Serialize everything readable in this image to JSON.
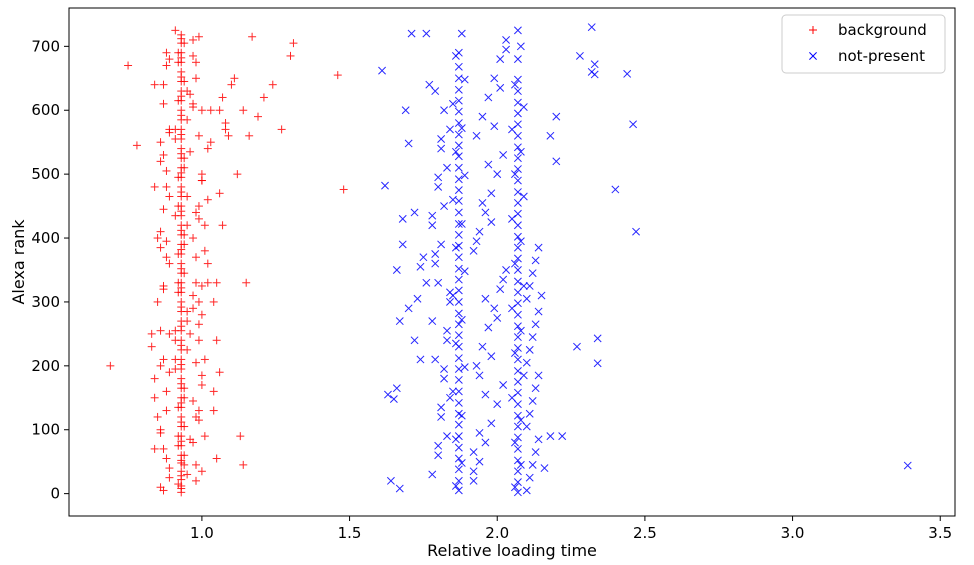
{
  "chart_data": {
    "type": "scatter",
    "title": "",
    "xlabel": "Relative loading time",
    "ylabel": "Alexa rank",
    "xlim": [
      0.55,
      3.55
    ],
    "ylim": [
      -35,
      760
    ],
    "xticks": [
      1.0,
      1.5,
      2.0,
      2.5,
      3.0,
      3.5
    ],
    "xtick_labels": [
      "1.0",
      "1.5",
      "2.0",
      "2.5",
      "3.0",
      "3.5"
    ],
    "yticks": [
      0,
      100,
      200,
      300,
      400,
      500,
      600,
      700
    ],
    "ytick_labels": [
      "0",
      "100",
      "200",
      "300",
      "400",
      "500",
      "600",
      "700"
    ],
    "grid": false,
    "legend_position": "top-right",
    "series": [
      {
        "name": "background",
        "marker": "plus",
        "color": "#ff0000",
        "x": [
          0.93,
          0.93,
          0.93,
          0.93,
          0.93,
          0.93,
          0.93,
          0.93,
          0.93,
          0.93,
          0.93,
          0.93,
          0.93,
          0.93,
          0.93,
          0.93,
          0.93,
          0.93,
          0.93,
          0.93,
          0.93,
          0.93,
          0.93,
          0.93,
          0.93,
          0.93,
          0.93,
          0.93,
          0.93,
          0.93,
          0.93,
          0.93,
          0.93,
          0.93,
          0.93,
          0.93,
          0.93,
          0.93,
          0.93,
          0.93,
          0.93,
          0.93,
          0.93,
          0.93,
          0.93,
          0.93,
          0.93,
          0.93,
          0.93,
          0.93,
          0.93,
          0.93,
          0.93,
          0.93,
          0.93,
          0.93,
          0.93,
          0.93,
          0.93,
          0.93,
          0.93,
          0.93,
          0.93,
          0.93,
          0.93,
          0.93,
          0.93,
          0.93,
          0.93,
          0.93,
          0.93,
          0.93,
          0.93,
          0.93,
          0.93,
          0.92,
          0.94,
          0.92,
          0.94,
          0.92,
          0.94,
          0.91,
          0.95,
          0.91,
          0.95,
          0.92,
          0.94,
          0.92,
          0.94,
          0.91,
          0.95,
          0.92,
          0.94,
          0.91,
          0.95,
          0.92,
          0.94,
          0.92,
          0.94,
          0.91,
          0.95,
          0.92,
          0.94,
          0.91,
          0.95,
          0.92,
          0.94,
          0.92,
          0.94,
          0.91,
          0.95,
          0.92,
          0.94,
          0.91,
          0.95,
          0.87,
          0.89,
          0.97,
          0.98,
          0.88,
          0.86,
          0.99,
          1.0,
          0.87,
          0.89,
          0.97,
          0.98,
          0.88,
          0.86,
          0.99,
          1.0,
          0.87,
          0.89,
          0.97,
          0.98,
          0.88,
          0.86,
          0.99,
          1.0,
          0.87,
          0.89,
          0.97,
          0.98,
          0.88,
          0.86,
          0.99,
          1.0,
          0.87,
          0.89,
          0.97,
          0.98,
          0.88,
          0.86,
          0.99,
          1.0,
          0.86,
          0.87,
          0.88,
          0.89,
          0.96,
          0.97,
          0.98,
          0.99,
          1.0,
          0.86,
          0.87,
          0.88,
          0.89,
          0.96,
          0.97,
          0.98,
          0.99,
          1.0,
          0.86,
          0.87,
          0.88,
          0.89,
          0.96,
          0.97,
          0.98,
          0.99,
          1.0,
          0.86,
          0.87,
          0.88,
          0.89,
          0.96,
          0.97,
          0.98,
          0.99,
          1.0,
          0.84,
          0.83,
          0.85,
          1.01,
          1.02,
          1.03,
          0.84,
          0.85,
          1.01,
          1.02,
          0.84,
          0.83,
          1.01,
          1.02,
          1.03,
          0.84,
          0.85,
          1.01,
          1.02,
          0.84,
          1.06,
          1.08,
          1.05,
          1.04,
          1.07,
          1.09,
          1.06,
          1.05,
          1.04,
          1.07,
          1.08,
          1.06,
          1.05,
          1.04,
          0.69,
          0.75,
          0.78,
          1.14,
          1.17,
          1.21,
          1.19,
          1.24,
          1.27,
          1.31,
          1.3,
          1.46,
          1.48,
          1.13,
          1.15,
          1.12,
          1.14,
          1.1,
          1.11,
          1.16
        ],
        "y": [
          2,
          12,
          22,
          35,
          48,
          60,
          75,
          90,
          105,
          120,
          135,
          150,
          165,
          180,
          195,
          210,
          225,
          240,
          255,
          270,
          285,
          300,
          315,
          330,
          345,
          360,
          375,
          390,
          405,
          420,
          435,
          450,
          465,
          480,
          495,
          510,
          525,
          540,
          555,
          570,
          585,
          600,
          615,
          630,
          645,
          660,
          675,
          690,
          705,
          718,
          8,
          28,
          52,
          82,
          112,
          142,
          172,
          202,
          232,
          262,
          292,
          322,
          352,
          382,
          412,
          442,
          472,
          502,
          532,
          562,
          592,
          622,
          652,
          682,
          712,
          15,
          45,
          75,
          105,
          135,
          165,
          195,
          225,
          255,
          285,
          315,
          345,
          375,
          405,
          435,
          465,
          495,
          525,
          555,
          585,
          615,
          645,
          675,
          705,
          725,
          30,
          90,
          150,
          210,
          270,
          330,
          390,
          450,
          510,
          570,
          630,
          690,
          60,
          240,
          420,
          5,
          40,
          80,
          120,
          160,
          200,
          240,
          280,
          320,
          360,
          400,
          440,
          480,
          520,
          560,
          600,
          640,
          680,
          710,
          20,
          55,
          95,
          130,
          170,
          210,
          250,
          290,
          330,
          370,
          410,
          450,
          490,
          530,
          570,
          610,
          650,
          690,
          100,
          300,
          500,
          10,
          70,
          130,
          190,
          250,
          310,
          370,
          430,
          490,
          550,
          610,
          670,
          25,
          85,
          145,
          205,
          265,
          325,
          385,
          445,
          505,
          565,
          625,
          685,
          45,
          115,
          185,
          255,
          325,
          395,
          465,
          535,
          605,
          675,
          715,
          35,
          180,
          230,
          120,
          380,
          460,
          600,
          70,
          300,
          210,
          540,
          640,
          250,
          420,
          360,
          550,
          150,
          400,
          90,
          330,
          480,
          600,
          570,
          55,
          300,
          420,
          560,
          190,
          240,
          130,
          620,
          580,
          470,
          330,
          160,
          200,
          670,
          545,
          45,
          715,
          620,
          590,
          640,
          570,
          705,
          685,
          655,
          476,
          90,
          330,
          500,
          600,
          640,
          650,
          560
        ]
      },
      {
        "name": "not-present",
        "marker": "x",
        "color": "#0000ff",
        "x": [
          1.87,
          1.87,
          1.87,
          1.87,
          1.87,
          1.87,
          1.87,
          1.87,
          1.87,
          1.87,
          1.87,
          1.87,
          1.87,
          1.87,
          1.87,
          1.87,
          1.87,
          1.87,
          1.87,
          1.87,
          1.87,
          1.87,
          1.87,
          1.87,
          1.87,
          1.87,
          1.87,
          1.87,
          1.87,
          1.87,
          1.87,
          1.87,
          1.87,
          1.87,
          1.87,
          1.87,
          1.87,
          1.87,
          1.87,
          1.87,
          1.86,
          1.88,
          1.86,
          1.88,
          1.85,
          1.89,
          1.86,
          1.88,
          1.85,
          1.89,
          1.86,
          1.88,
          1.85,
          1.89,
          1.86,
          1.88,
          1.85,
          1.89,
          1.86,
          1.88,
          2.07,
          2.07,
          2.07,
          2.07,
          2.07,
          2.07,
          2.07,
          2.07,
          2.07,
          2.07,
          2.07,
          2.07,
          2.07,
          2.07,
          2.07,
          2.07,
          2.07,
          2.07,
          2.07,
          2.07,
          2.07,
          2.07,
          2.07,
          2.07,
          2.07,
          2.07,
          2.07,
          2.07,
          2.07,
          2.07,
          2.07,
          2.07,
          2.07,
          2.07,
          2.07,
          2.07,
          2.07,
          2.07,
          2.07,
          2.07,
          2.06,
          2.08,
          2.06,
          2.08,
          2.05,
          2.09,
          2.06,
          2.08,
          2.05,
          2.09,
          2.06,
          2.08,
          2.05,
          2.09,
          2.06,
          2.08,
          2.05,
          2.09,
          2.06,
          2.08,
          1.8,
          1.81,
          1.82,
          1.83,
          1.84,
          1.79,
          1.78,
          1.8,
          1.81,
          1.82,
          1.83,
          1.84,
          1.79,
          1.78,
          1.8,
          1.81,
          1.82,
          1.83,
          1.84,
          1.79,
          1.78,
          1.8,
          1.81,
          1.82,
          1.83,
          1.84,
          1.79,
          1.78,
          1.8,
          1.81,
          1.92,
          1.94,
          1.96,
          1.98,
          2.0,
          2.02,
          1.93,
          1.95,
          1.97,
          1.99,
          2.01,
          2.03,
          1.92,
          1.94,
          1.96,
          1.98,
          2.0,
          2.02,
          1.93,
          1.95,
          1.97,
          1.99,
          2.01,
          2.03,
          1.92,
          1.94,
          1.96,
          1.98,
          2.0,
          2.02,
          1.93,
          1.95,
          1.97,
          1.99,
          2.01,
          2.03,
          1.92,
          1.94,
          1.96,
          1.98,
          2.1,
          2.11,
          2.12,
          2.13,
          2.14,
          2.1,
          2.11,
          2.12,
          2.13,
          2.14,
          2.1,
          2.11,
          2.12,
          2.13,
          2.14,
          2.1,
          2.11,
          2.12,
          2.13,
          2.14,
          1.61,
          1.62,
          1.63,
          1.64,
          1.65,
          1.66,
          1.67,
          1.68,
          1.69,
          1.7,
          1.71,
          1.72,
          1.73,
          1.74,
          1.75,
          1.76,
          1.77,
          1.66,
          1.67,
          1.68,
          1.7,
          1.72,
          1.74,
          1.76,
          2.16,
          2.18,
          2.2,
          2.22,
          2.28,
          2.32,
          2.33,
          2.33,
          2.34,
          2.34,
          2.4,
          2.44,
          2.46,
          2.47,
          2.32,
          3.39,
          2.18,
          2.2,
          2.27,
          2.15
        ],
        "y": [
          5,
          20,
          38,
          55,
          72,
          90,
          108,
          125,
          142,
          160,
          178,
          195,
          212,
          230,
          248,
          265,
          282,
          300,
          318,
          335,
          352,
          370,
          388,
          405,
          422,
          440,
          458,
          475,
          492,
          510,
          528,
          545,
          562,
          580,
          598,
          615,
          632,
          650,
          668,
          690,
          12,
          48,
          85,
          122,
          160,
          198,
          235,
          272,
          310,
          348,
          385,
          422,
          460,
          498,
          535,
          572,
          610,
          648,
          685,
          720,
          2,
          18,
          35,
          52,
          70,
          88,
          105,
          122,
          140,
          158,
          175,
          192,
          210,
          228,
          245,
          262,
          280,
          298,
          315,
          332,
          350,
          368,
          385,
          402,
          420,
          438,
          455,
          472,
          490,
          508,
          525,
          542,
          560,
          578,
          595,
          612,
          630,
          648,
          680,
          725,
          10,
          45,
          80,
          115,
          150,
          185,
          220,
          255,
          290,
          325,
          360,
          395,
          430,
          465,
          500,
          535,
          570,
          605,
          640,
          700,
          60,
          120,
          180,
          240,
          300,
          360,
          420,
          480,
          540,
          600,
          90,
          150,
          210,
          270,
          330,
          390,
          450,
          510,
          570,
          630,
          30,
          75,
          135,
          195,
          255,
          315,
          375,
          435,
          495,
          555,
          20,
          50,
          80,
          110,
          140,
          170,
          200,
          230,
          260,
          290,
          320,
          350,
          380,
          410,
          440,
          470,
          500,
          530,
          560,
          590,
          620,
          650,
          680,
          710,
          35,
          95,
          155,
          215,
          275,
          335,
          395,
          455,
          515,
          575,
          635,
          695,
          65,
          185,
          305,
          425,
          5,
          25,
          45,
          65,
          85,
          105,
          125,
          145,
          165,
          185,
          205,
          225,
          245,
          265,
          285,
          305,
          325,
          345,
          365,
          385,
          662,
          482,
          155,
          20,
          148,
          165,
          8,
          430,
          600,
          548,
          720,
          440,
          305,
          355,
          370,
          720,
          640,
          350,
          270,
          390,
          290,
          240,
          210,
          330,
          40,
          90,
          590,
          90,
          685,
          730,
          672,
          656,
          243,
          204,
          476,
          657,
          578,
          410,
          660,
          44,
          560,
          520,
          230,
          310
        ]
      }
    ]
  }
}
